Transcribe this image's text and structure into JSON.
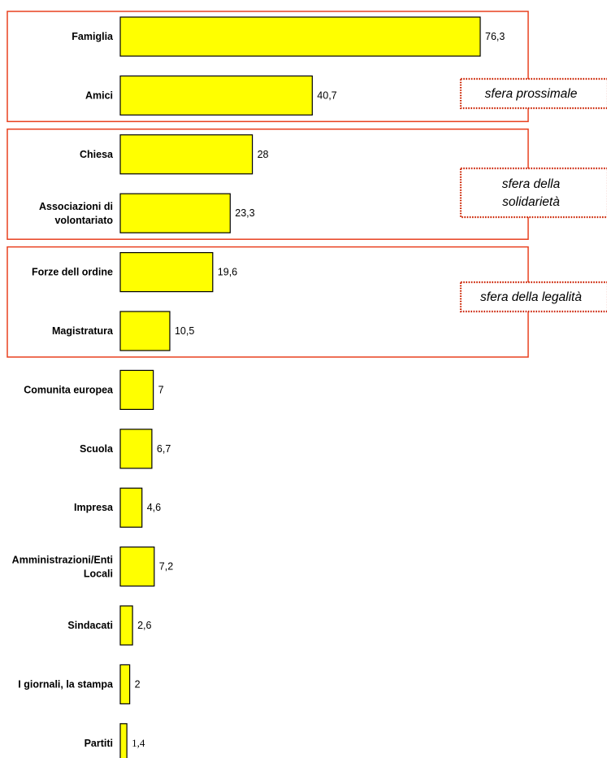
{
  "chart_data": {
    "type": "bar",
    "orientation": "horizontal",
    "categories": [
      [
        "Famiglia"
      ],
      [
        "Amici"
      ],
      [
        "Chiesa"
      ],
      [
        "Associazioni di",
        "volontariato"
      ],
      [
        "Forze dell ordine"
      ],
      [
        "Magistratura"
      ],
      [
        "Comunita  europea"
      ],
      [
        "Scuola"
      ],
      [
        "Impresa"
      ],
      [
        "Amministrazioni/Enti",
        "Locali"
      ],
      [
        "Sindacati"
      ],
      [
        "I giornali, la stampa"
      ],
      [
        "Partiti"
      ]
    ],
    "values": [
      76.3,
      40.7,
      28,
      23.3,
      19.6,
      10.5,
      7,
      6.7,
      4.6,
      7.2,
      2.6,
      2,
      1.4
    ],
    "value_labels": [
      "76,3",
      "40,7",
      "28",
      "23,3",
      "19,6",
      "10,5",
      "7",
      "6,7",
      "4,6",
      "7,2",
      "2,6",
      "2",
      "1,4"
    ],
    "bar_color": "#ffff00",
    "xlim": [
      0,
      80
    ],
    "grid": false,
    "groups": [
      {
        "label": [
          "sfera prossimale"
        ],
        "from": 0,
        "to": 1
      },
      {
        "label": [
          "sfera della",
          "solidarietà"
        ],
        "from": 2,
        "to": 3
      },
      {
        "label": [
          "sfera della legalità"
        ],
        "from": 4,
        "to": 5
      }
    ],
    "colors": {
      "group_border": "#e8401f",
      "annotation_border": "#cc2200"
    }
  }
}
